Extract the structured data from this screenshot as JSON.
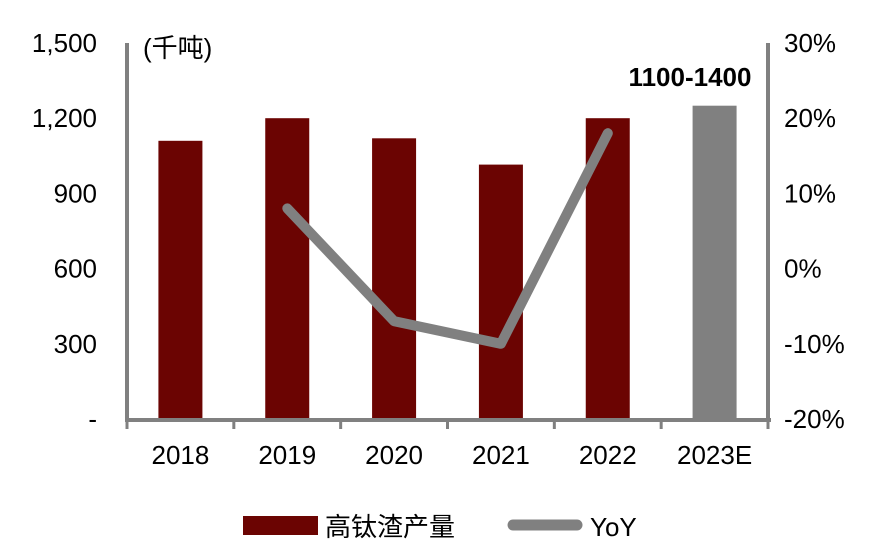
{
  "figure": {
    "unit_label": "(千吨)",
    "annotation": "1100-1400"
  },
  "legend": [
    {
      "label": "高钛渣产量",
      "swatch": "bar"
    },
    {
      "label": "YoY",
      "swatch": "line"
    }
  ],
  "colors": {
    "bar": "#6B0402",
    "forecast_bar": "#808080",
    "line": "#808080",
    "axis": "#808080",
    "text": "#000000"
  },
  "chart_data": {
    "type": "bar",
    "subtype": "bar+line dual-axis combo",
    "categories": [
      "2018",
      "2019",
      "2020",
      "2021",
      "2022",
      "2023E"
    ],
    "series": [
      {
        "name": "高钛渣产量",
        "type": "bar",
        "axis": "left",
        "unit": "千吨",
        "values": [
          1110,
          1200,
          1120,
          1015,
          1200,
          1250
        ],
        "bar_colors": [
          "#6B0402",
          "#6B0402",
          "#6B0402",
          "#6B0402",
          "#6B0402",
          "#808080"
        ]
      },
      {
        "name": "YoY",
        "type": "line",
        "axis": "right",
        "unit": "%",
        "values": [
          null,
          8,
          -7,
          -10,
          18,
          null
        ]
      }
    ],
    "left_axis": {
      "label": "(千吨)",
      "range": [
        0,
        1500
      ],
      "tick_labels": [
        "1,500",
        "1,200",
        "900",
        "600",
        "300",
        "-"
      ]
    },
    "right_axis": {
      "range": [
        -20,
        30
      ],
      "tick_labels": [
        "30%",
        "20%",
        "10%",
        "0%",
        "-10%",
        "-20%"
      ]
    },
    "annotation": {
      "text": "1100-1400",
      "target_category": "2023E"
    },
    "grid": false,
    "legend_position": "bottom"
  }
}
